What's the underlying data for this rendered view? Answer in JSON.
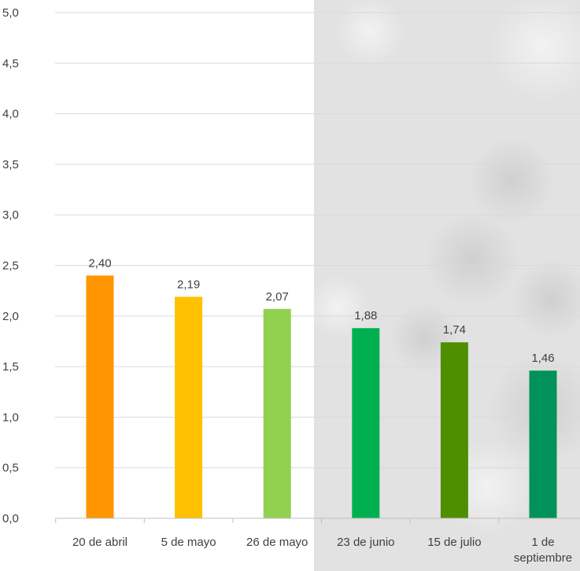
{
  "chart_data": {
    "type": "bar",
    "categories": [
      [
        "20 de abril"
      ],
      [
        "5 de mayo"
      ],
      [
        "26 de mayo"
      ],
      [
        "23 de junio"
      ],
      [
        "15 de julio"
      ],
      [
        "1 de",
        "septiembre"
      ]
    ],
    "values": [
      2.4,
      2.19,
      2.07,
      1.88,
      1.74,
      1.46
    ],
    "value_labels": [
      "2,40",
      "2,19",
      "2,07",
      "1,88",
      "1,74",
      "1,46"
    ],
    "bar_colors": [
      "#ff9500",
      "#ffc000",
      "#92d050",
      "#00b050",
      "#4e8f00",
      "#00925a"
    ],
    "yticks": [
      "0,0",
      "0,5",
      "1,0",
      "1,5",
      "2,0",
      "2,5",
      "3,0",
      "3,5",
      "4,0",
      "4,5",
      "5,0"
    ],
    "ylim": [
      0,
      5
    ],
    "grid": true,
    "gridline_color": "#d9d9d9",
    "axis_color": "#bfbfbf",
    "text_color": "#404040"
  }
}
